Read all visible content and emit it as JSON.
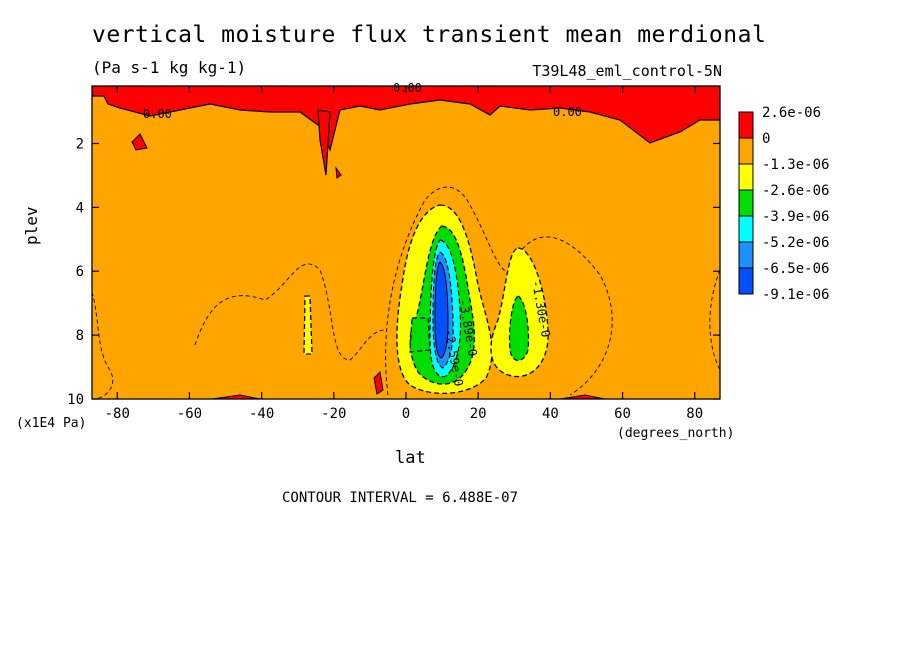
{
  "chart_data": {
    "type": "heatmap",
    "title": "vertical moisture flux transient mean merdional",
    "units": "(Pa s-1 kg kg-1)",
    "run_label": "T39L48_eml_control-5N",
    "xlabel": "lat",
    "x_units": "(degrees_north)",
    "ylabel": "plev",
    "y_units": "(x1E4 Pa)",
    "xlim": [
      -87,
      87
    ],
    "ylim": [
      10,
      0.2
    ],
    "x_ticks": [
      "-80",
      "-60",
      "-40",
      "-20",
      "0",
      "20",
      "40",
      "60",
      "80"
    ],
    "y_ticks": [
      "2",
      "4",
      "6",
      "8",
      "10"
    ],
    "contour_interval_text": "CONTOUR INTERVAL = 6.488E-07",
    "contour_labels": [
      "0.00",
      "0.00",
      "0.00",
      "-1.30e-0",
      "-3.89e-0",
      "-2.59e-0"
    ],
    "legend": {
      "labels": [
        "2.6e-06",
        "0",
        "-1.3e-06",
        "-2.6e-06",
        "-3.9e-06",
        "-5.2e-06",
        "-6.5e-06",
        "-9.1e-06"
      ],
      "colors": [
        "#ff0000",
        "#ffa500",
        "#ffff00",
        "#00dd00",
        "#00ffff",
        "#1e90ff",
        "#0050ff"
      ]
    },
    "background_color": "#ffa500"
  }
}
